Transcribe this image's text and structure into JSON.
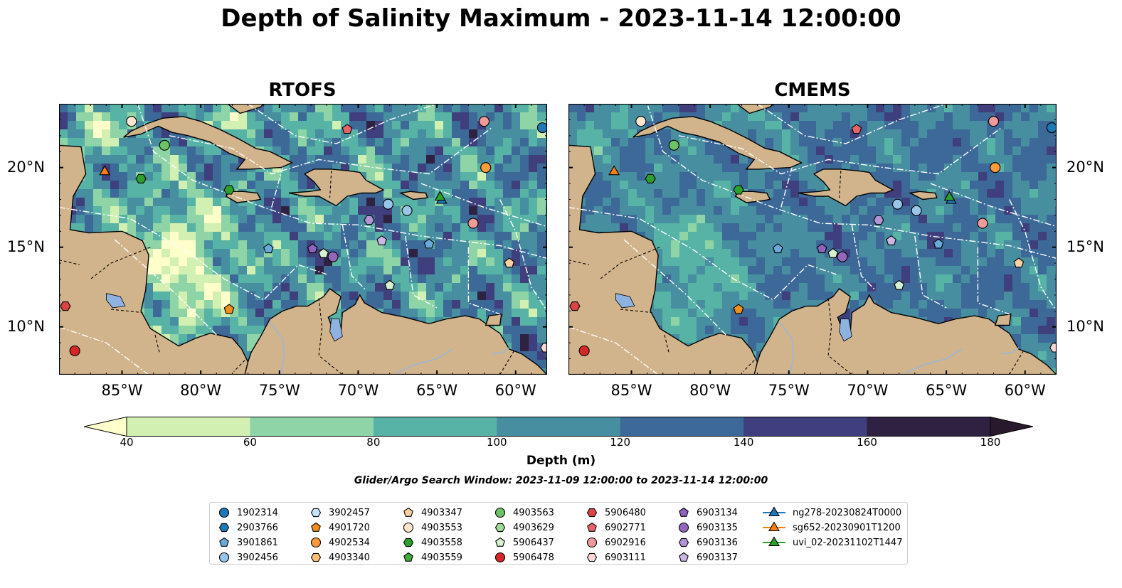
{
  "title": "Depth of Salinity Maximum - 2023-11-14 12:00:00",
  "panels": [
    {
      "title": "RTOFS"
    },
    {
      "title": "CMEMS"
    }
  ],
  "axes": {
    "lon_labels": [
      "85°W",
      "80°W",
      "75°W",
      "70°W",
      "65°W",
      "60°W"
    ],
    "lat_labels": [
      "20°N",
      "15°N",
      "10°N"
    ],
    "lon_values": [
      -85,
      -80,
      -75,
      -70,
      -65,
      -60
    ],
    "lat_values": [
      20,
      15,
      10
    ],
    "lon_range": [
      -89,
      -58
    ],
    "lat_range": [
      7,
      24
    ]
  },
  "colorbar": {
    "title": "Depth (m)",
    "ticks": [
      "40",
      "60",
      "80",
      "100",
      "120",
      "140",
      "160",
      "180"
    ],
    "colors": [
      "#ffffcc",
      "#d3f0b3",
      "#8fd4a6",
      "#57b3a6",
      "#468ea0",
      "#3c6997",
      "#3e3f7c",
      "#2e2142",
      "#281a2c"
    ],
    "extend": "both"
  },
  "search_window": "Glider/Argo Search Window: 2023-11-09 12:00:00 to 2023-11-14 12:00:00",
  "colors": {
    "land": "#d2b48c",
    "lake": "#8eb3e0",
    "river": "#9ab7d8"
  },
  "legend": [
    {
      "label": "1902314",
      "marker": "circle",
      "color": "#1f77b4"
    },
    {
      "label": "2903766",
      "marker": "hexagon",
      "color": "#1f77b4"
    },
    {
      "label": "3901861",
      "marker": "pentagon",
      "color": "#6aa9dc"
    },
    {
      "label": "3902456",
      "marker": "circle",
      "color": "#98c6ea"
    },
    {
      "label": "3902457",
      "marker": "hexagon",
      "color": "#c6e2f7"
    },
    {
      "label": "4901720",
      "marker": "pentagon",
      "color": "#f28f1c"
    },
    {
      "label": "4902534",
      "marker": "circle",
      "color": "#fd9a3c"
    },
    {
      "label": "4903340",
      "marker": "hexagon",
      "color": "#fdbe76"
    },
    {
      "label": "4903347",
      "marker": "pentagon",
      "color": "#fdd0a2"
    },
    {
      "label": "4903553",
      "marker": "circle",
      "color": "#fee6ce"
    },
    {
      "label": "4903558",
      "marker": "hexagon",
      "color": "#2ca02c"
    },
    {
      "label": "4903559",
      "marker": "pentagon",
      "color": "#41ab3c"
    },
    {
      "label": "4903563",
      "marker": "circle",
      "color": "#6cc365"
    },
    {
      "label": "4903629",
      "marker": "hexagon",
      "color": "#a1d99b"
    },
    {
      "label": "5906437",
      "marker": "pentagon",
      "color": "#d7f0cf"
    },
    {
      "label": "5906478",
      "marker": "circle",
      "color": "#d62728"
    },
    {
      "label": "5906480",
      "marker": "hexagon",
      "color": "#dc4345"
    },
    {
      "label": "6902771",
      "marker": "pentagon",
      "color": "#e8626a"
    },
    {
      "label": "6902916",
      "marker": "circle",
      "color": "#f29a98"
    },
    {
      "label": "6903111",
      "marker": "hexagon",
      "color": "#fdd7d6"
    },
    {
      "label": "6903134",
      "marker": "pentagon",
      "color": "#8f62be"
    },
    {
      "label": "6903135",
      "marker": "circle",
      "color": "#9467bd"
    },
    {
      "label": "6903136",
      "marker": "hexagon",
      "color": "#b294d6"
    },
    {
      "label": "6903137",
      "marker": "pentagon",
      "color": "#cbb6e6"
    },
    {
      "label": "ng278-20230824T0000",
      "marker": "triangle-line",
      "color": "#1f77b4"
    },
    {
      "label": "sg652-20230901T1200",
      "marker": "triangle-line",
      "color": "#ff7f0e"
    },
    {
      "label": "uvi_02-20231102T1447",
      "marker": "triangle-line",
      "color": "#2ca02c"
    }
  ],
  "observations": [
    {
      "id": "1902314",
      "lon": -58.3,
      "lat": 22.5
    },
    {
      "id": "3901861",
      "lon": -65.5,
      "lat": 15.2
    },
    {
      "id": "3901861",
      "lon": -75.7,
      "lat": 14.9
    },
    {
      "id": "3902456",
      "lon": -68.1,
      "lat": 17.7
    },
    {
      "id": "3902456",
      "lon": -66.9,
      "lat": 17.3
    },
    {
      "id": "4901720",
      "lon": -78.2,
      "lat": 11.1
    },
    {
      "id": "4902534",
      "lon": -61.9,
      "lat": 20.0
    },
    {
      "id": "4903347",
      "lon": -60.4,
      "lat": 14.0
    },
    {
      "id": "4903553",
      "lon": -84.4,
      "lat": 22.9
    },
    {
      "id": "4903558",
      "lon": -78.2,
      "lat": 18.6
    },
    {
      "id": "4903558",
      "lon": -83.8,
      "lat": 19.3
    },
    {
      "id": "4903563",
      "lon": -82.3,
      "lat": 21.4
    },
    {
      "id": "5906437",
      "lon": -68.0,
      "lat": 12.6
    },
    {
      "id": "5906437",
      "lon": -72.2,
      "lat": 14.6
    },
    {
      "id": "5906478",
      "lon": -88.0,
      "lat": 8.5
    },
    {
      "id": "5906480",
      "lon": -88.6,
      "lat": 11.3
    },
    {
      "id": "6902771",
      "lon": -70.7,
      "lat": 22.4
    },
    {
      "id": "6902916",
      "lon": -62.0,
      "lat": 22.9
    },
    {
      "id": "6902916",
      "lon": -62.7,
      "lat": 16.5
    },
    {
      "id": "6903111",
      "lon": -58.1,
      "lat": 8.7
    },
    {
      "id": "6903134",
      "lon": -72.9,
      "lat": 14.9
    },
    {
      "id": "6903135",
      "lon": -71.6,
      "lat": 14.4
    },
    {
      "id": "6903136",
      "lon": -69.3,
      "lat": 16.7
    },
    {
      "id": "6903137",
      "lon": -68.5,
      "lat": 15.4
    },
    {
      "id": "sg652-20230901T1200",
      "lon": -86.1,
      "lat": 19.8
    },
    {
      "id": "ng278-20230824T0000",
      "lon": -64.7,
      "lat": 18.0
    },
    {
      "id": "uvi_02-20231102T1447",
      "lon": -64.8,
      "lat": 18.2
    }
  ]
}
